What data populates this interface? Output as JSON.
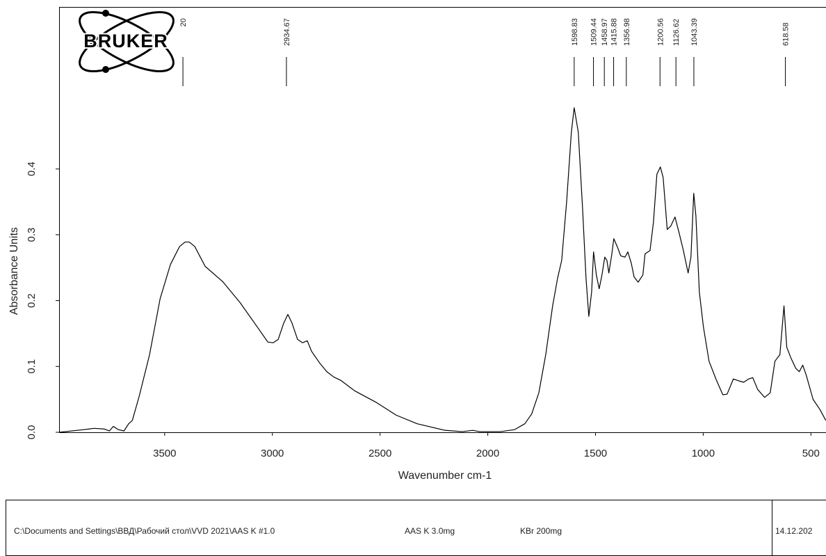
{
  "chart_data": {
    "type": "line",
    "xlabel": "Wavenumber cm-1",
    "ylabel": "Absorbance Units",
    "color": "#000000",
    "xlim": [
      3990,
      430
    ],
    "ylim": [
      0,
      0.646
    ],
    "xticks": [
      3500,
      3000,
      2500,
      2000,
      1500,
      1000,
      500
    ],
    "yticks": [
      {
        "value": 0,
        "label": "0.0"
      },
      0.1,
      0.2,
      0.3,
      0.4
    ],
    "peaks": [
      {
        "value": 3415.2,
        "label": "3415.20"
      },
      {
        "value": 2934.67,
        "label": "2934.67"
      },
      {
        "value": 1598.83,
        "label": "1598.83"
      },
      {
        "value": 1509.44,
        "label": "1509.44"
      },
      {
        "value": 1458.97,
        "label": "1458.97"
      },
      {
        "value": 1415.88,
        "label": "1415.88"
      },
      {
        "value": 1356.98,
        "label": "1356.98"
      },
      {
        "value": 1200.56,
        "label": "1200.56"
      },
      {
        "value": 1126.62,
        "label": "1126.62"
      },
      {
        "value": 1043.39,
        "label": "1043.39"
      },
      {
        "value": 618.58,
        "label": "618.58"
      }
    ],
    "x": [
      3989,
      3876,
      3828,
      3780,
      3757,
      3738,
      3715,
      3689,
      3667,
      3650,
      3618,
      3570,
      3521,
      3473,
      3431,
      3405,
      3386,
      3360,
      3312,
      3231,
      3150,
      3070,
      3021,
      2996,
      2973,
      2947,
      2928,
      2909,
      2883,
      2860,
      2838,
      2818,
      2780,
      2747,
      2715,
      2683,
      2618,
      2521,
      2425,
      2328,
      2199,
      2118,
      2070,
      2038,
      1941,
      1876,
      1828,
      1796,
      1763,
      1731,
      1699,
      1676,
      1657,
      1634,
      1612,
      1599,
      1580,
      1560,
      1544,
      1531,
      1518,
      1509,
      1496,
      1483,
      1470,
      1457,
      1447,
      1438,
      1425,
      1415,
      1399,
      1383,
      1363,
      1350,
      1334,
      1321,
      1302,
      1280,
      1270,
      1247,
      1231,
      1215,
      1199,
      1186,
      1167,
      1151,
      1131,
      1112,
      1092,
      1070,
      1057,
      1044,
      1034,
      1018,
      999,
      973,
      941,
      909,
      889,
      860,
      834,
      812,
      789,
      770,
      747,
      715,
      689,
      667,
      644,
      625,
      612,
      593,
      570,
      554,
      538,
      522,
      490,
      457,
      431
    ],
    "values": [
      0.0,
      0.004,
      0.006,
      0.005,
      0.002,
      0.009,
      0.004,
      0.002,
      0.013,
      0.018,
      0.055,
      0.118,
      0.203,
      0.255,
      0.282,
      0.289,
      0.289,
      0.282,
      0.252,
      0.229,
      0.197,
      0.16,
      0.137,
      0.136,
      0.141,
      0.166,
      0.179,
      0.166,
      0.141,
      0.136,
      0.139,
      0.123,
      0.105,
      0.092,
      0.084,
      0.079,
      0.063,
      0.046,
      0.026,
      0.013,
      0.003,
      0.001,
      0.003,
      0.001,
      0.001,
      0.004,
      0.013,
      0.028,
      0.06,
      0.118,
      0.192,
      0.234,
      0.261,
      0.35,
      0.456,
      0.493,
      0.456,
      0.34,
      0.234,
      0.176,
      0.213,
      0.274,
      0.239,
      0.218,
      0.239,
      0.266,
      0.261,
      0.242,
      0.269,
      0.294,
      0.282,
      0.268,
      0.266,
      0.274,
      0.257,
      0.236,
      0.228,
      0.239,
      0.271,
      0.276,
      0.319,
      0.392,
      0.403,
      0.387,
      0.308,
      0.313,
      0.327,
      0.303,
      0.276,
      0.242,
      0.266,
      0.363,
      0.329,
      0.213,
      0.16,
      0.108,
      0.081,
      0.057,
      0.058,
      0.081,
      0.078,
      0.076,
      0.081,
      0.083,
      0.065,
      0.053,
      0.06,
      0.108,
      0.118,
      0.192,
      0.129,
      0.113,
      0.097,
      0.092,
      0.102,
      0.087,
      0.05,
      0.034,
      0.018
    ]
  },
  "logo": "BRUKER",
  "footer": {
    "file": "C:\\Documents and Settings\\ВВД\\Рабочий стол\\VVD 2021\\AAS K #1.0",
    "sample": "AAS K 3.0mg",
    "matrix": "KBr 200mg",
    "date": "14.12.202"
  }
}
